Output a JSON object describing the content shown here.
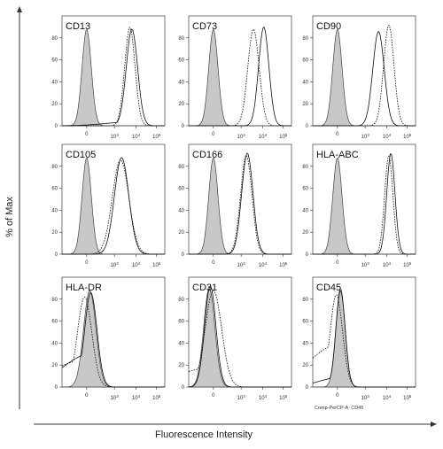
{
  "figure": {
    "y_axis_label": "% of Max",
    "x_axis_label": "Fluorescence Intensity",
    "extra_caption": "Comp-PerCP-A: CD45"
  },
  "colors": {
    "isotype_fill": "#c8c8c8",
    "line": "#111111",
    "frame": "#555555"
  },
  "chart_data": [
    {
      "type": "area",
      "panel": "CD13",
      "title": "CD13",
      "xticks": [
        "0",
        "10^3",
        "10^4",
        "10^5"
      ],
      "yticks": [
        "0",
        "20",
        "40",
        "60",
        "80"
      ],
      "ylim": [
        0,
        100
      ],
      "series": [
        {
          "style": "filled",
          "peak": 88
        },
        {
          "style": "solid",
          "peak": 88
        },
        {
          "style": "dotted",
          "peak": 90
        }
      ]
    },
    {
      "type": "area",
      "panel": "CD73",
      "title": "CD73",
      "xticks": [
        "0",
        "10^3",
        "10^4",
        "10^5"
      ],
      "yticks": [
        "0",
        "20",
        "40",
        "60",
        "80"
      ],
      "ylim": [
        0,
        100
      ],
      "series": [
        {
          "style": "filled",
          "peak": 88
        },
        {
          "style": "solid",
          "peak": 90
        },
        {
          "style": "dotted",
          "peak": 88
        }
      ]
    },
    {
      "type": "area",
      "panel": "CD90",
      "title": "CD90",
      "xticks": [
        "0",
        "10^3",
        "10^4",
        "10^5"
      ],
      "yticks": [
        "0",
        "20",
        "40",
        "60",
        "80"
      ],
      "ylim": [
        0,
        100
      ],
      "series": [
        {
          "style": "filled",
          "peak": 88
        },
        {
          "style": "solid",
          "peak": 86
        },
        {
          "style": "dotted",
          "peak": 92
        }
      ]
    },
    {
      "type": "area",
      "panel": "CD105",
      "title": "CD105",
      "xticks": [
        "0",
        "10^3",
        "10^4",
        "10^5"
      ],
      "yticks": [
        "0",
        "20",
        "40",
        "60",
        "80"
      ],
      "ylim": [
        0,
        100
      ],
      "series": [
        {
          "style": "filled",
          "peak": 88
        },
        {
          "style": "solid",
          "peak": 88
        },
        {
          "style": "dotted",
          "peak": 86
        }
      ]
    },
    {
      "type": "area",
      "panel": "CD166",
      "title": "CD166",
      "xticks": [
        "0",
        "10^3",
        "10^4",
        "10^5"
      ],
      "yticks": [
        "0",
        "20",
        "40",
        "60",
        "80"
      ],
      "ylim": [
        0,
        100
      ],
      "series": [
        {
          "style": "filled",
          "peak": 88
        },
        {
          "style": "solid",
          "peak": 92
        },
        {
          "style": "dotted",
          "peak": 90
        }
      ]
    },
    {
      "type": "area",
      "panel": "HLA-ABC",
      "title": "HLA-ABC",
      "xticks": [
        "0",
        "10^3",
        "10^4",
        "10^5"
      ],
      "yticks": [
        "0",
        "20",
        "40",
        "60",
        "80"
      ],
      "ylim": [
        0,
        100
      ],
      "series": [
        {
          "style": "filled",
          "peak": 88
        },
        {
          "style": "solid",
          "peak": 92
        },
        {
          "style": "dotted",
          "peak": 90
        }
      ]
    },
    {
      "type": "area",
      "panel": "HLA-DR",
      "title": "HLA-DR",
      "xticks": [
        "0",
        "10^3",
        "10^4",
        "10^5"
      ],
      "yticks": [
        "0",
        "20",
        "40",
        "60",
        "80"
      ],
      "ylim": [
        0,
        100
      ],
      "series": [
        {
          "style": "filled",
          "peak": 88
        },
        {
          "style": "solid",
          "peak": 86
        },
        {
          "style": "dotted",
          "peak": 82
        }
      ]
    },
    {
      "type": "area",
      "panel": "CD31",
      "title": "CD31",
      "xticks": [
        "0",
        "10^3",
        "10^4",
        "10^5"
      ],
      "yticks": [
        "0",
        "20",
        "40",
        "60",
        "80"
      ],
      "ylim": [
        0,
        100
      ],
      "series": [
        {
          "style": "filled",
          "peak": 90
        },
        {
          "style": "solid",
          "peak": 92
        },
        {
          "style": "dotted",
          "peak": 88
        }
      ]
    },
    {
      "type": "area",
      "panel": "CD45",
      "title": "CD45",
      "xticks": [
        "0",
        "10^3",
        "10^4",
        "10^5"
      ],
      "yticks": [
        "0",
        "20",
        "40",
        "60",
        "80"
      ],
      "ylim": [
        0,
        100
      ],
      "series": [
        {
          "style": "filled",
          "peak": 90
        },
        {
          "style": "solid",
          "peak": 88
        },
        {
          "style": "dotted",
          "peak": 84
        }
      ]
    }
  ]
}
